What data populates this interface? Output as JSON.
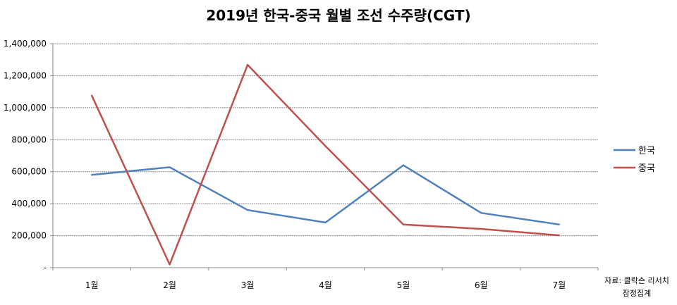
{
  "chart_data": {
    "type": "line",
    "title": "2019년 한국-중국 월별 조선 수주량(CGT)",
    "categories": [
      "1월",
      "2월",
      "3월",
      "4월",
      "5월",
      "6월",
      "7월"
    ],
    "series": [
      {
        "name": "한국",
        "color": "#4f81bd",
        "values": [
          580000,
          628000,
          360000,
          282000,
          640000,
          342000,
          270000
        ]
      },
      {
        "name": "중국",
        "color": "#c0504d",
        "values": [
          1075000,
          20000,
          1268000,
          760000,
          270000,
          242000,
          202000
        ]
      }
    ],
    "ylim": [
      0,
      1400000
    ],
    "yticks": [
      0,
      200000,
      400000,
      600000,
      800000,
      1000000,
      1200000,
      1400000
    ],
    "ytick_labels": [
      "-",
      "200,000",
      "400,000",
      "600,000",
      "800,000",
      "1,000,000",
      "1,200,000",
      "1,400,000"
    ],
    "xlabel": "",
    "ylabel": "",
    "grid": true,
    "legend": "right"
  },
  "source": {
    "line1": "자료: 클락슨 리서치",
    "line2": "잠정집계"
  }
}
